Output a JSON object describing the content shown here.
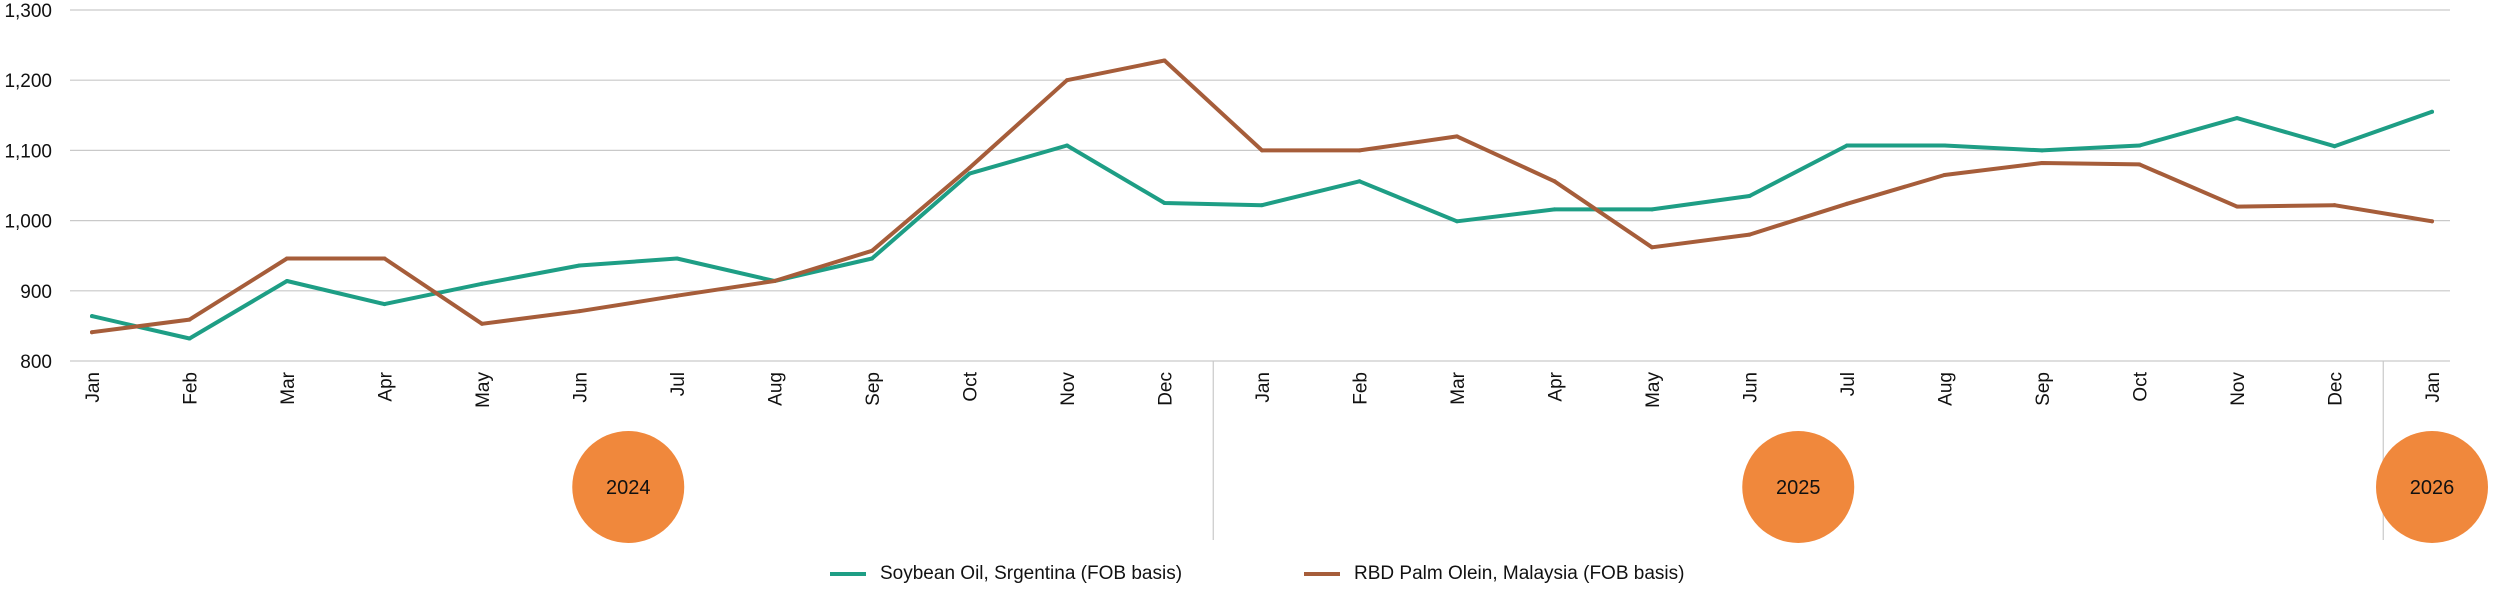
{
  "chart_data": {
    "type": "line",
    "x": [
      "Jan",
      "Feb",
      "Mar",
      "Apr",
      "May",
      "Jun",
      "Jul",
      "Aug",
      "Sep",
      "Oct",
      "Nov",
      "Dec",
      "Jan",
      "Feb",
      "Mar",
      "Apr",
      "May",
      "Jun",
      "Jul",
      "Aug",
      "Sep",
      "Oct",
      "Nov",
      "Dec",
      "Jan"
    ],
    "years": [
      {
        "label": "2024",
        "start": 0,
        "end": 11
      },
      {
        "label": "2025",
        "start": 12,
        "end": 23
      },
      {
        "label": "2026",
        "start": 24,
        "end": 24
      }
    ],
    "yticks": [
      800,
      900,
      1000,
      1100,
      1200,
      1300
    ],
    "ytick_labels": [
      "800",
      "900",
      "1,000",
      "1,100",
      "1,200",
      "1,300"
    ],
    "ylim": [
      800,
      1300
    ],
    "grid": true,
    "legend_position": "bottom",
    "series": [
      {
        "name": "Soybean Oil, Srgentina (FOB basis)",
        "color": "#1e9e85",
        "values": [
          864,
          832,
          914,
          881,
          910,
          936,
          946,
          914,
          946,
          1067,
          1107,
          1025,
          1022,
          1056,
          999,
          1016,
          1016,
          1035,
          1107,
          1107,
          1100,
          1107,
          1146,
          1106,
          1155
        ]
      },
      {
        "name": "RBD Palm Olein, Malaysia (FOB basis)",
        "color": "#a65d3a",
        "values": [
          841,
          859,
          946,
          946,
          853,
          871,
          893,
          914,
          957,
          1075,
          1200,
          1228,
          1100,
          1100,
          1120,
          1056,
          962,
          980,
          1024,
          1065,
          1082,
          1080,
          1020,
          1022,
          999
        ]
      }
    ],
    "year_badge_color": "#f0883c"
  }
}
